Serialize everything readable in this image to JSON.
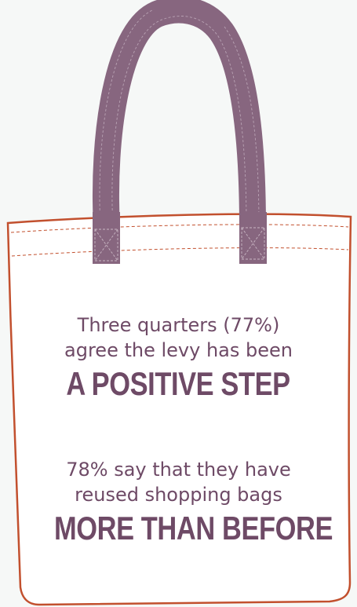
{
  "colors": {
    "background": "#f6f8f7",
    "bag_fill": "#ffffff",
    "bag_outline": "#c2502e",
    "handle": "#87667f",
    "text": "#6e4a66"
  },
  "icons": [
    "tote-bag-icon"
  ],
  "statements": [
    {
      "line1": "Three quarters (77%)",
      "line2": "agree the levy has been",
      "headline": "A POSITIVE STEP"
    },
    {
      "line1": "78% say that they have",
      "line2": "reused shopping bags",
      "headline": "MORE THAN BEFORE"
    }
  ]
}
